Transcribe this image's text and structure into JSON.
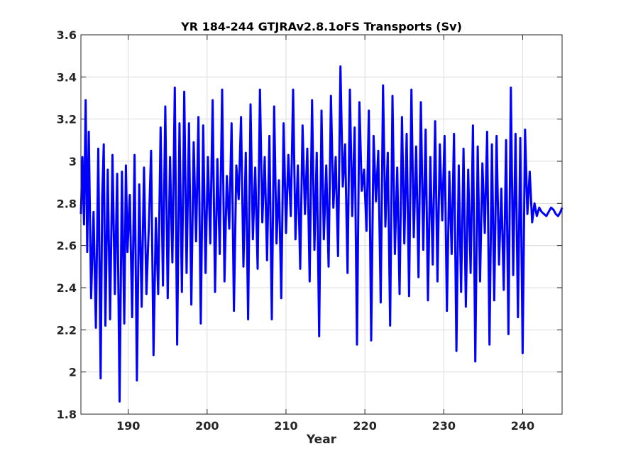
{
  "chart_data": {
    "type": "line",
    "title": "YR 184-244 GTJRAv2.8.1oFS Transports (Sv)",
    "xlabel": "Year",
    "ylabel": "",
    "xlim": [
      184,
      245
    ],
    "ylim": [
      1.8,
      3.6
    ],
    "xticks": [
      190,
      200,
      210,
      220,
      230,
      240
    ],
    "xtick_labels": [
      "190",
      "200",
      "210",
      "220",
      "230",
      "240"
    ],
    "yticks": [
      1.8,
      2,
      2.2,
      2.4,
      2.6,
      2.8,
      3,
      3.2,
      3.4,
      3.6
    ],
    "ytick_labels": [
      "1.8",
      "2",
      "2.2",
      "2.4",
      "2.6",
      "2.8",
      "3",
      "3.2",
      "3.4",
      "3.6"
    ],
    "grid": true,
    "line_color": "#0000ff",
    "series": [
      {
        "x": [
          184.0,
          184.2,
          184.4,
          184.6,
          184.8,
          185.0,
          185.3,
          185.6,
          185.9,
          186.2,
          186.5,
          186.7,
          186.9,
          187.1,
          187.4,
          187.7,
          188.0,
          188.3,
          188.6,
          188.9,
          189.2,
          189.5,
          189.7,
          189.9,
          190.2,
          190.5,
          190.8,
          191.1,
          191.4,
          191.7,
          192.0,
          192.3,
          192.6,
          192.9,
          193.2,
          193.5,
          193.8,
          194.1,
          194.4,
          194.7,
          195.0,
          195.3,
          195.6,
          195.9,
          196.2,
          196.5,
          196.8,
          197.1,
          197.4,
          197.7,
          198.0,
          198.3,
          198.6,
          198.9,
          199.2,
          199.5,
          199.8,
          200.1,
          200.4,
          200.7,
          201.0,
          201.3,
          201.6,
          201.9,
          202.2,
          202.5,
          202.8,
          203.1,
          203.4,
          203.7,
          204.0,
          204.3,
          204.6,
          204.9,
          205.2,
          205.5,
          205.8,
          206.1,
          206.4,
          206.7,
          207.0,
          207.3,
          207.6,
          207.9,
          208.2,
          208.5,
          208.8,
          209.1,
          209.4,
          209.7,
          210.0,
          210.3,
          210.6,
          210.9,
          211.2,
          211.5,
          211.8,
          212.1,
          212.4,
          212.7,
          213.0,
          213.3,
          213.6,
          213.9,
          214.2,
          214.5,
          214.8,
          215.1,
          215.4,
          215.7,
          216.0,
          216.3,
          216.6,
          216.9,
          217.2,
          217.5,
          217.8,
          218.1,
          218.4,
          218.7,
          219.0,
          219.3,
          219.6,
          219.9,
          220.2,
          220.5,
          220.8,
          221.1,
          221.4,
          221.7,
          222.0,
          222.3,
          222.6,
          222.9,
          223.2,
          223.5,
          223.8,
          224.1,
          224.4,
          224.7,
          225.0,
          225.3,
          225.6,
          225.9,
          226.2,
          226.5,
          226.8,
          227.1,
          227.4,
          227.7,
          228.0,
          228.3,
          228.6,
          228.9,
          229.2,
          229.5,
          229.8,
          230.1,
          230.4,
          230.7,
          231.0,
          231.3,
          231.6,
          231.9,
          232.2,
          232.5,
          232.8,
          233.1,
          233.4,
          233.7,
          234.0,
          234.3,
          234.6,
          234.9,
          235.2,
          235.5,
          235.8,
          236.1,
          236.4,
          236.7,
          237.0,
          237.3,
          237.6,
          237.9,
          238.2,
          238.5,
          238.8,
          239.1,
          239.4,
          239.7,
          240.0,
          240.3,
          240.6,
          240.9,
          241.2,
          241.5,
          241.8,
          242.1,
          242.4,
          242.7,
          243.0,
          243.3,
          243.6,
          243.9,
          244.2,
          244.5,
          244.8,
          245.0
        ],
        "values": [
          2.75,
          3.02,
          2.7,
          3.29,
          2.57,
          3.14,
          2.35,
          2.76,
          2.21,
          3.06,
          1.97,
          2.83,
          3.08,
          2.22,
          2.96,
          2.25,
          3.03,
          2.37,
          2.94,
          1.86,
          2.95,
          2.23,
          2.98,
          2.57,
          2.84,
          2.26,
          3.03,
          1.96,
          2.89,
          2.31,
          2.97,
          2.37,
          2.68,
          3.05,
          2.08,
          2.73,
          2.37,
          3.16,
          2.41,
          3.26,
          2.35,
          3.02,
          2.52,
          3.35,
          2.13,
          3.18,
          2.38,
          3.33,
          2.47,
          3.18,
          2.32,
          3.09,
          2.62,
          3.21,
          2.23,
          3.17,
          2.47,
          3.02,
          2.61,
          3.29,
          2.38,
          3.01,
          2.56,
          3.34,
          2.43,
          2.93,
          2.68,
          3.18,
          2.29,
          2.98,
          2.82,
          3.21,
          2.5,
          3.04,
          2.25,
          3.27,
          2.63,
          2.97,
          2.49,
          3.34,
          2.71,
          3.02,
          2.53,
          3.12,
          2.25,
          3.26,
          2.61,
          2.91,
          2.35,
          3.18,
          2.66,
          3.03,
          2.74,
          3.34,
          2.63,
          2.98,
          2.49,
          3.17,
          2.75,
          3.06,
          2.43,
          3.29,
          2.58,
          3.04,
          2.17,
          3.24,
          2.63,
          2.98,
          2.5,
          3.31,
          2.78,
          3.02,
          2.55,
          3.45,
          2.88,
          3.08,
          2.47,
          3.34,
          2.74,
          3.16,
          2.13,
          3.28,
          2.86,
          2.96,
          2.67,
          3.24,
          2.15,
          3.12,
          2.81,
          3.05,
          2.33,
          3.36,
          2.69,
          3.04,
          2.22,
          3.31,
          2.56,
          2.97,
          2.37,
          3.21,
          2.61,
          3.13,
          2.36,
          3.34,
          2.64,
          3.07,
          2.45,
          3.28,
          2.58,
          3.15,
          2.34,
          3.02,
          2.51,
          3.19,
          2.43,
          3.08,
          2.72,
          3.12,
          2.29,
          2.95,
          2.56,
          3.13,
          2.1,
          2.98,
          2.38,
          3.06,
          2.31,
          2.96,
          2.47,
          3.17,
          2.05,
          3.07,
          2.43,
          2.99,
          2.66,
          3.14,
          2.13,
          3.08,
          2.34,
          3.12,
          2.51,
          2.87,
          2.39,
          3.1,
          2.18,
          3.35,
          2.46,
          3.13,
          2.26,
          3.11,
          2.09,
          3.15,
          2.75,
          2.95,
          2.71,
          2.8,
          2.74,
          2.78,
          2.76,
          2.75,
          2.74,
          2.76,
          2.78,
          2.77,
          2.75,
          2.74,
          2.76,
          2.78
        ]
      }
    ]
  }
}
